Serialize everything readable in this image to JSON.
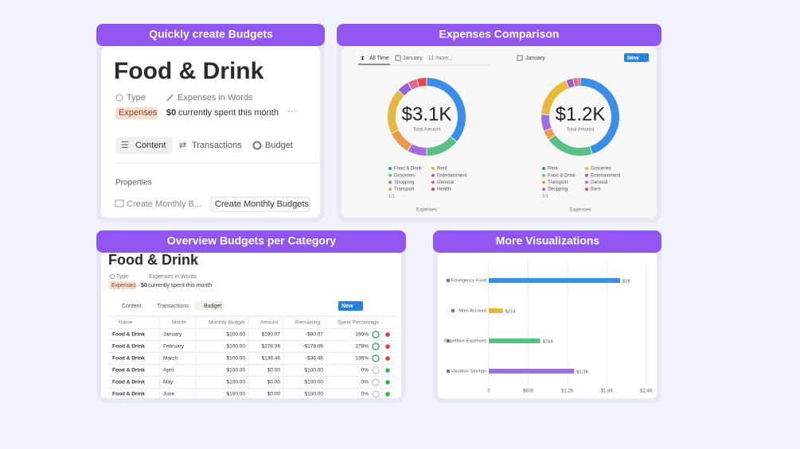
{
  "panels": [
    {
      "title": "Quickly create Budgets"
    },
    {
      "title": "Expenses Comparison"
    },
    {
      "title": "Overview Budgets per Category"
    },
    {
      "title": "More Visualizations"
    }
  ],
  "budget_page": {
    "title": "Food & Drink",
    "property_type": "Type",
    "property_words": "Expenses in Words",
    "tag": "Expenses",
    "spent_amount": "$0",
    "spent_text": "currently spent this month",
    "tabs": [
      "Content",
      "Transactions",
      "Budget"
    ],
    "properties_heading": "Properties",
    "property_button": "Create Monthly B...",
    "button": "Create Monthly Budgets"
  },
  "comparison": {
    "left_tabs": [
      "All Time",
      "January",
      "11 more..."
    ],
    "right_tab": "January",
    "new_button": "New"
  },
  "overview": {
    "title": "Food & Drink",
    "property_type": "Type",
    "property_words": "Expenses in Words",
    "tag": "Expenses",
    "spent_amount": "$0",
    "spent_text": "currently spent this month",
    "tabs": [
      "Content",
      "Transactions",
      "Budget"
    ],
    "new_button": "New",
    "table": {
      "columns": [
        "Name",
        "Month",
        "Monthly Budget",
        "Amount",
        "Remaining",
        "Spent Percentage"
      ],
      "rows": [
        [
          "Food & Drink",
          "January",
          "$100.00",
          "$190.07",
          "-$90.07",
          "190%"
        ],
        [
          "Food & Drink",
          "February",
          "$100.00",
          "$278.06",
          "-$178.06",
          "278%"
        ],
        [
          "Food & Drink",
          "March",
          "$100.00",
          "$136.46",
          "-$36.46",
          "136%"
        ],
        [
          "Food & Drink",
          "April",
          "$100.00",
          "$0.00",
          "$100.00",
          "0%"
        ],
        [
          "Food & Drink",
          "May",
          "$100.00",
          "$0.00",
          "$100.00",
          "0%"
        ],
        [
          "Food & Drink",
          "June",
          "$100.00",
          "$0.00",
          "$100.00",
          "0%"
        ]
      ],
      "ring_colors": [
        "#3fa66a",
        "#3fa66a",
        "#3fa66a",
        "#c9c9c9",
        "#c9c9c9",
        "#c9c9c9"
      ],
      "status_colors": [
        "#e03b3b",
        "#e03b3b",
        "#e03b3b",
        "#2fb34a",
        "#2fb34a",
        "#2fb34a"
      ]
    }
  },
  "chart_data": [
    {
      "type": "pie",
      "donut": true,
      "center_value": "$3.1K",
      "center_label": "Total Amount",
      "footer": "Expenses",
      "pagination": "1/1",
      "categories": [
        "Food & Drink",
        "Groceries",
        "Shopping",
        "Transport",
        "Rent",
        "Entertainment",
        "General",
        "Health"
      ],
      "values": [
        36,
        14,
        8,
        10,
        19,
        5,
        4,
        4
      ],
      "colors": [
        "#3b8ee8",
        "#5cc085",
        "#a070e0",
        "#ec9a4c",
        "#e6b93c",
        "#8e63d8",
        "#e2668f",
        "#e04848"
      ]
    },
    {
      "type": "pie",
      "donut": true,
      "center_value": "$1.2K",
      "center_label": "Total Amount",
      "footer": "Expenses",
      "pagination": "1/1",
      "categories": [
        "Rent",
        "Food & Drink",
        "Transport",
        "Shopping",
        "Groceries",
        "Entertainment",
        "General",
        "Bars"
      ],
      "values": [
        45,
        20,
        4,
        7,
        18,
        3,
        2,
        1
      ],
      "colors": [
        "#3b8ee8",
        "#5cc085",
        "#ec9a4c",
        "#a070e0",
        "#e6b93c",
        "#8e63d8",
        "#e2668f",
        "#e04848"
      ]
    },
    {
      "type": "bar",
      "orientation": "horizontal",
      "categories": [
        "Emergency Fund",
        "Main Account",
        "Repetitive Expenses",
        "Vacation Savings"
      ],
      "values": [
        2000,
        214,
        784,
        1300
      ],
      "value_labels": [
        "$2K",
        "$214",
        "$784",
        "$1.3K"
      ],
      "colors": [
        "#3b8ee8",
        "#e6b93c",
        "#5cc085",
        "#a070e0"
      ],
      "xlim": [
        0,
        2400
      ],
      "xticks": [
        0,
        {
          "value": 600,
          "label": "$600"
        },
        {
          "value": 1200,
          "label": "$1.2K"
        },
        {
          "value": 1800,
          "label": "$1.8K"
        },
        {
          "value": 2400,
          "label": "$2.4K"
        }
      ],
      "grid": true
    }
  ]
}
